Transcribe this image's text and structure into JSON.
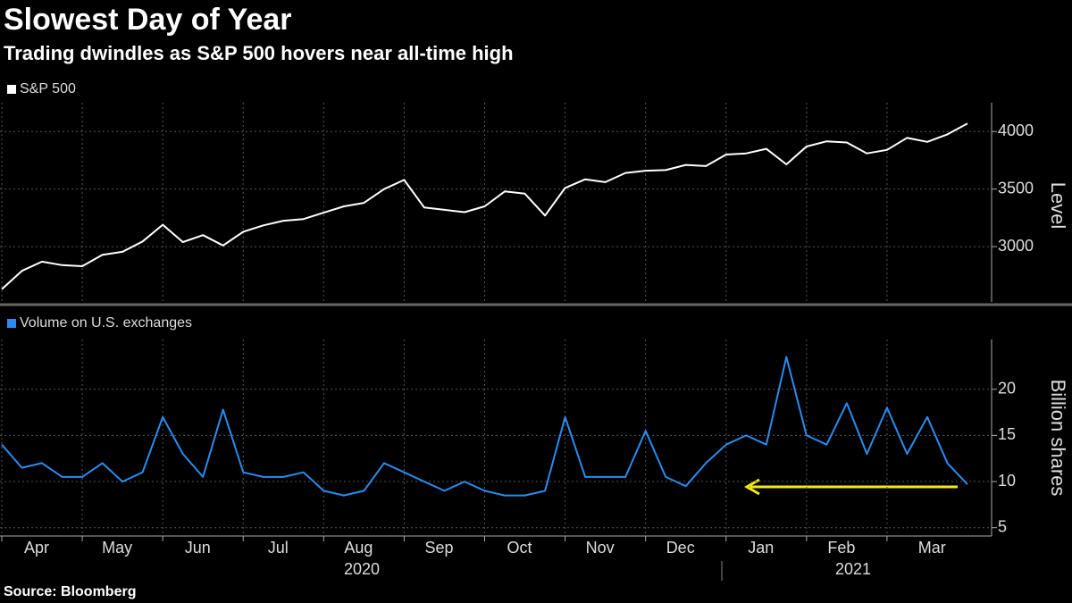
{
  "title": "Slowest Day of Year",
  "subtitle": "Trading dwindles as S&P 500 hovers near all-time high",
  "source": "Source: Bloomberg",
  "year_labels": [
    "2020",
    "2021"
  ],
  "chart_data": [
    {
      "type": "line",
      "y_label": "Level",
      "grid": true,
      "categories": [
        "Apr",
        null,
        null,
        null,
        "May",
        null,
        null,
        null,
        "Jun",
        null,
        null,
        null,
        "Jul",
        null,
        null,
        null,
        "Aug",
        null,
        null,
        null,
        "Sep",
        null,
        null,
        null,
        "Oct",
        null,
        null,
        null,
        "Nov",
        null,
        null,
        null,
        "Dec",
        null,
        null,
        null,
        "Jan",
        null,
        null,
        null,
        "Feb",
        null,
        null,
        null,
        "Mar",
        null,
        null,
        null,
        null
      ],
      "series": [
        {
          "name": "S&P 500",
          "color": "#ffffff",
          "values": [
            2630,
            2790,
            2870,
            2840,
            2830,
            2930,
            2955,
            3045,
            3190,
            3040,
            3100,
            3010,
            3130,
            3185,
            3225,
            3240,
            3295,
            3350,
            3380,
            3500,
            3580,
            3340,
            3320,
            3300,
            3350,
            3480,
            3460,
            3270,
            3510,
            3585,
            3560,
            3640,
            3660,
            3665,
            3710,
            3700,
            3800,
            3810,
            3850,
            3715,
            3870,
            3915,
            3905,
            3810,
            3840,
            3945,
            3910,
            3975,
            4070
          ]
        }
      ],
      "ylim": [
        2520,
        4250
      ],
      "yticks": [
        3000,
        3500,
        4000
      ]
    },
    {
      "type": "line",
      "y_label": "Billion shares",
      "grid": true,
      "categories": [
        "Apr",
        null,
        null,
        null,
        "May",
        null,
        null,
        null,
        "Jun",
        null,
        null,
        null,
        "Jul",
        null,
        null,
        null,
        "Aug",
        null,
        null,
        null,
        "Sep",
        null,
        null,
        null,
        "Oct",
        null,
        null,
        null,
        "Nov",
        null,
        null,
        null,
        "Dec",
        null,
        null,
        null,
        "Jan",
        null,
        null,
        null,
        "Feb",
        null,
        null,
        null,
        "Mar",
        null,
        null,
        null,
        null
      ],
      "series": [
        {
          "name": "Volume on U.S. exchanges",
          "color": "#2a8cf0",
          "values": [
            14,
            11.5,
            12,
            10.5,
            10.5,
            12,
            10,
            11,
            17,
            13,
            10.5,
            17.8,
            11,
            10.5,
            10.5,
            11,
            9,
            8.5,
            9,
            12,
            11,
            10,
            9,
            10,
            9,
            8.5,
            8.5,
            9,
            17,
            10.5,
            10.5,
            10.5,
            15.5,
            10.5,
            9.5,
            12,
            14,
            15,
            14,
            23.5,
            15,
            14,
            18.5,
            13,
            18,
            13,
            17,
            12,
            9.7
          ]
        }
      ],
      "ylim": [
        4.1,
        25.4
      ],
      "yticks": [
        5,
        10,
        15,
        20
      ]
    }
  ]
}
